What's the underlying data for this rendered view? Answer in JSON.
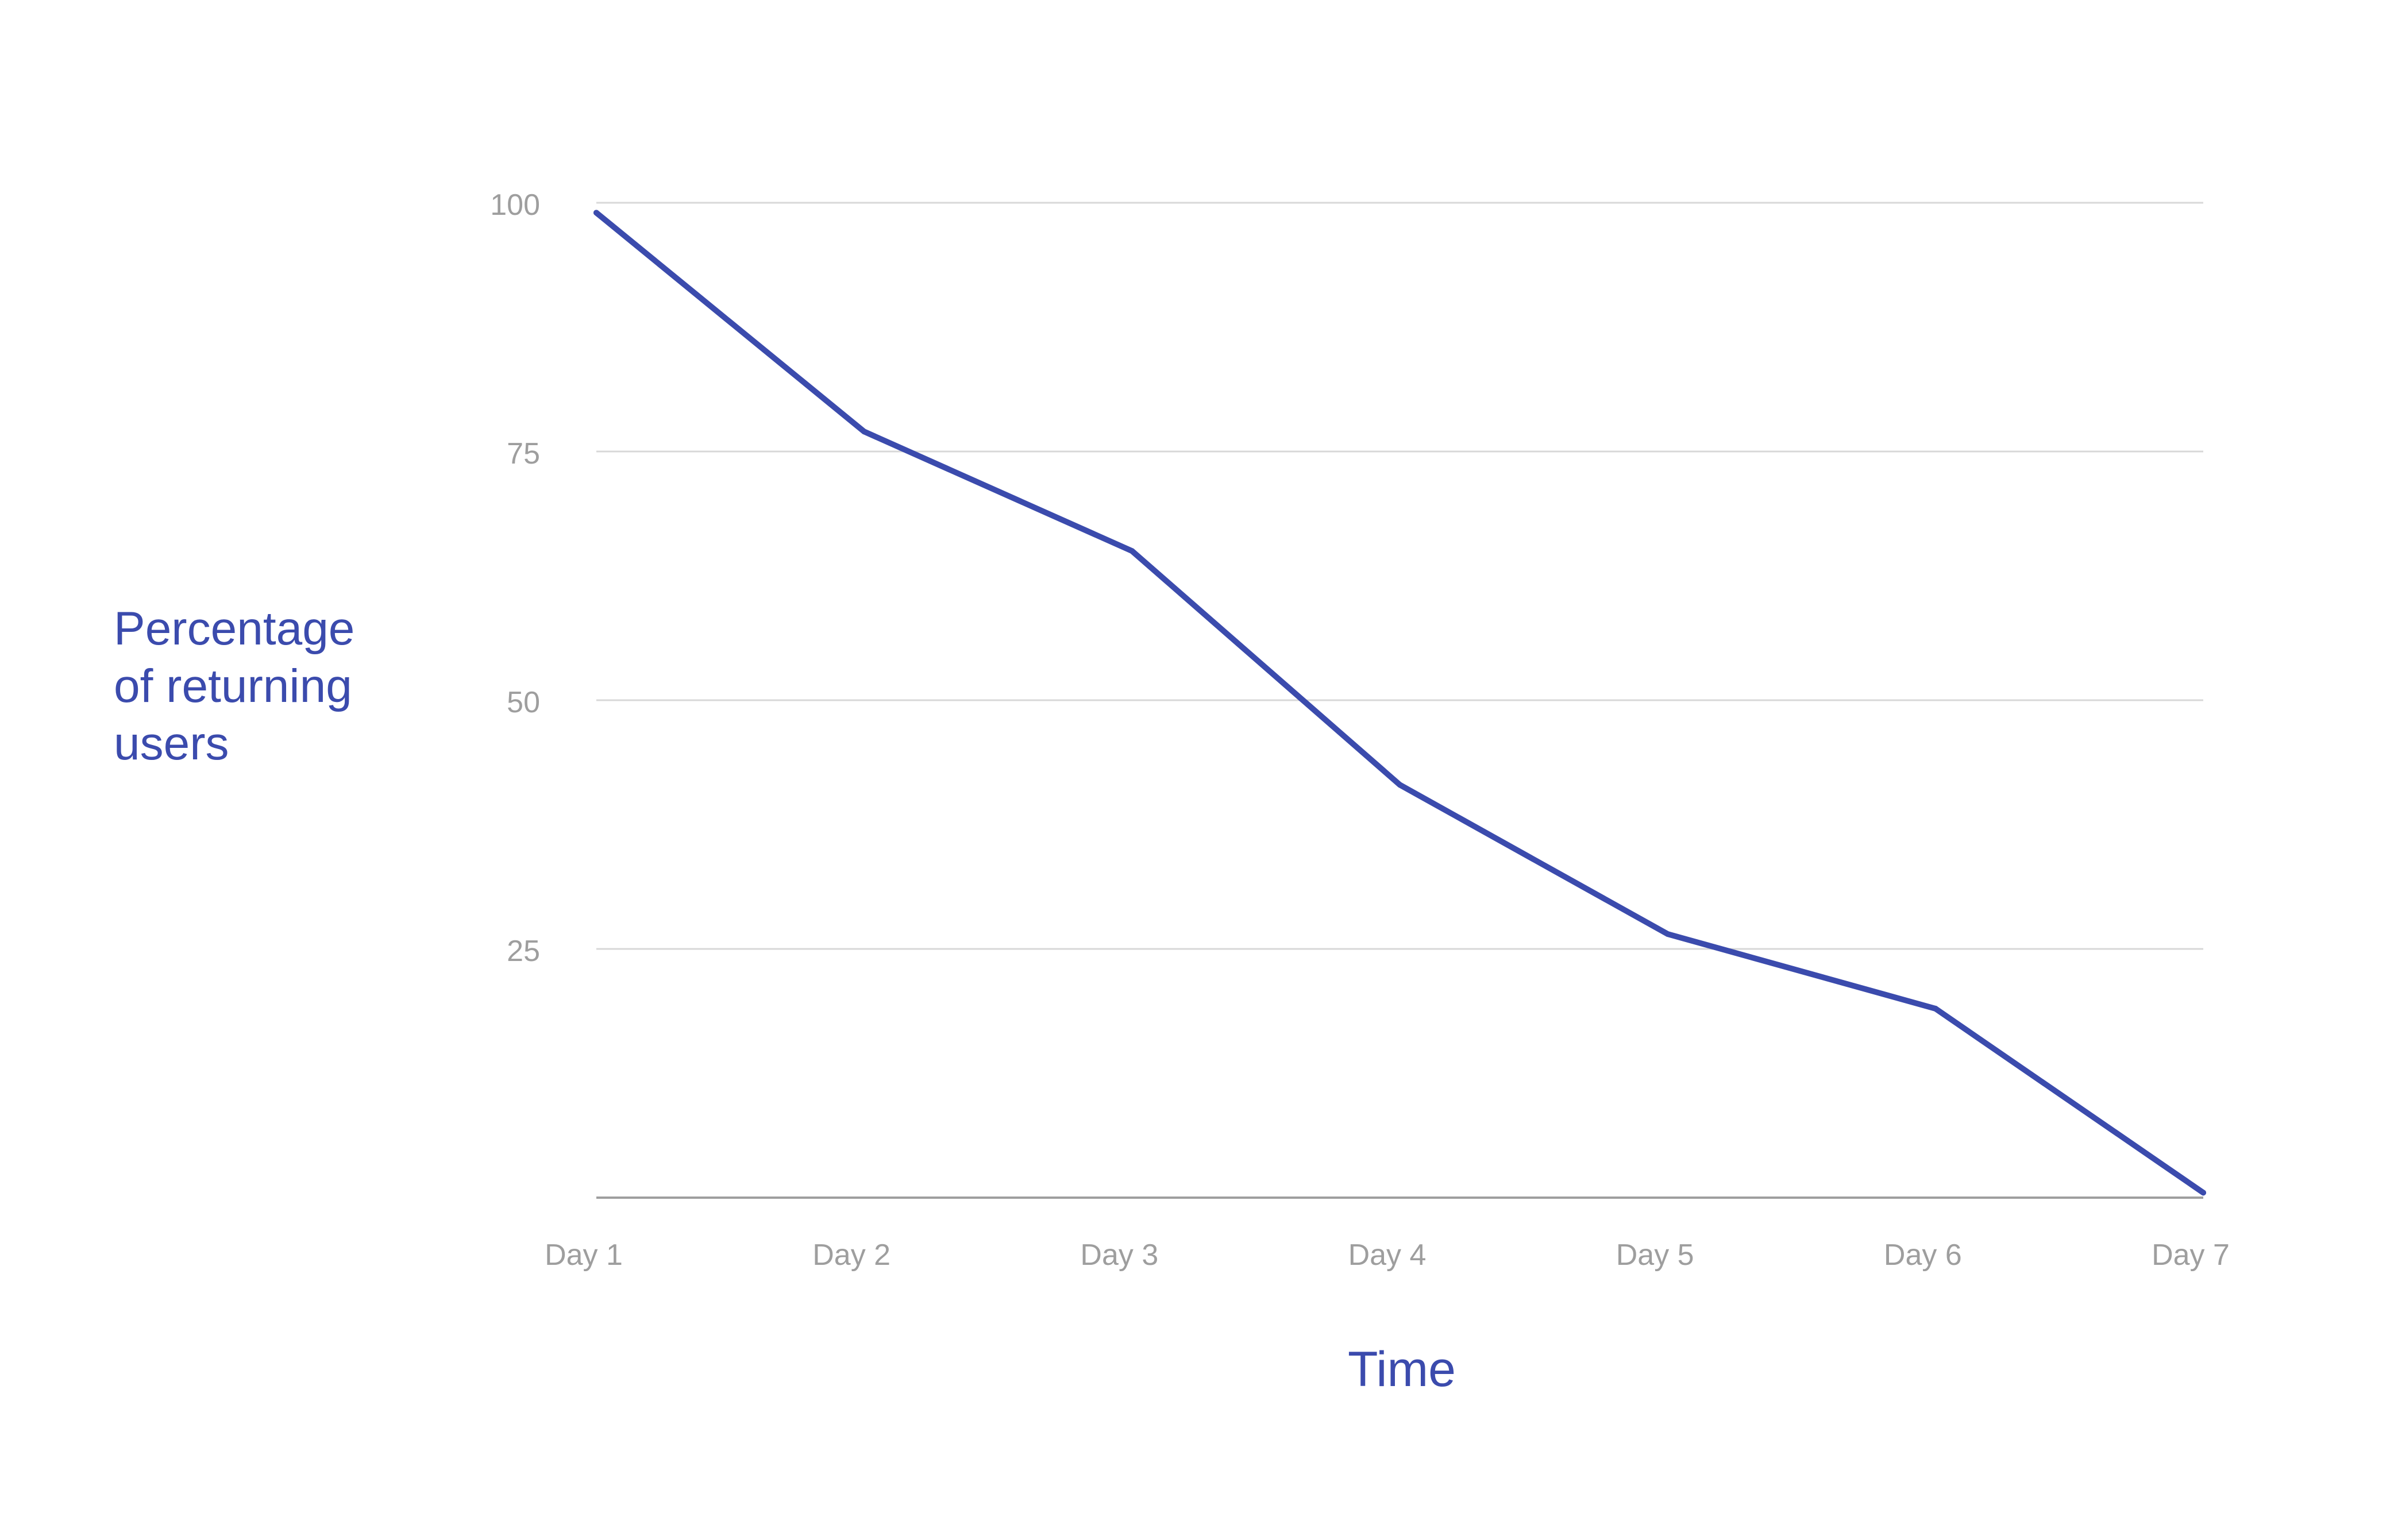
{
  "chart_data": {
    "type": "line",
    "title": "",
    "xlabel": "Time",
    "ylabel_lines": [
      "Percentage",
      "of returning",
      "users"
    ],
    "categories": [
      "Day 1",
      "Day 2",
      "Day 3",
      "Day 4",
      "Day 5",
      "Day 6",
      "Day 7"
    ],
    "series": [
      {
        "values": [
          99,
          77,
          65,
          41.5,
          26.5,
          19,
          0.5
        ]
      }
    ],
    "yticks": [
      25,
      50,
      75,
      100
    ],
    "ylim": [
      0,
      100
    ],
    "grid": true,
    "colors": {
      "line": "#3b4bad",
      "grid": "#d8d8d8",
      "axis": "#9e9e9e",
      "tick_text": "#9e9e9e",
      "label_text": "#3b4bad"
    }
  }
}
